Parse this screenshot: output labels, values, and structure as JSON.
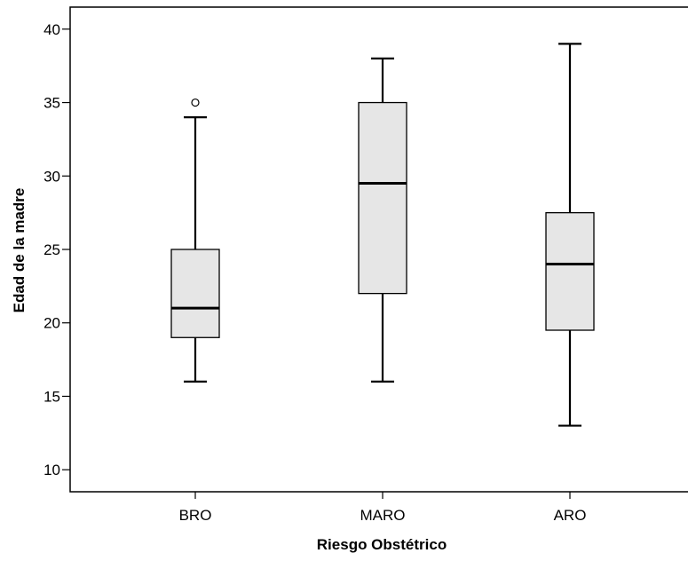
{
  "chart_data": {
    "type": "boxplot",
    "title": "",
    "xlabel": "Riesgo Obstétrico",
    "ylabel": "Edad de la madre",
    "categories": [
      "BRO",
      "MARO",
      "ARO"
    ],
    "ylim": [
      8.5,
      41.5
    ],
    "yticks": [
      10,
      15,
      20,
      25,
      30,
      35,
      40
    ],
    "grid": false,
    "legend": "none",
    "box_fill": "#e6e6e6",
    "stroke_color": "#000000",
    "boxes": [
      {
        "category": "BRO",
        "whisker_low": 16,
        "q1": 19,
        "median": 21,
        "q3": 25,
        "whisker_high": 34,
        "outliers": [
          35
        ]
      },
      {
        "category": "MARO",
        "whisker_low": 16,
        "q1": 22,
        "median": 29.5,
        "q3": 35,
        "whisker_high": 38,
        "outliers": []
      },
      {
        "category": "ARO",
        "whisker_low": 13,
        "q1": 19.5,
        "median": 24,
        "q3": 27.5,
        "whisker_high": 39,
        "outliers": []
      }
    ]
  }
}
